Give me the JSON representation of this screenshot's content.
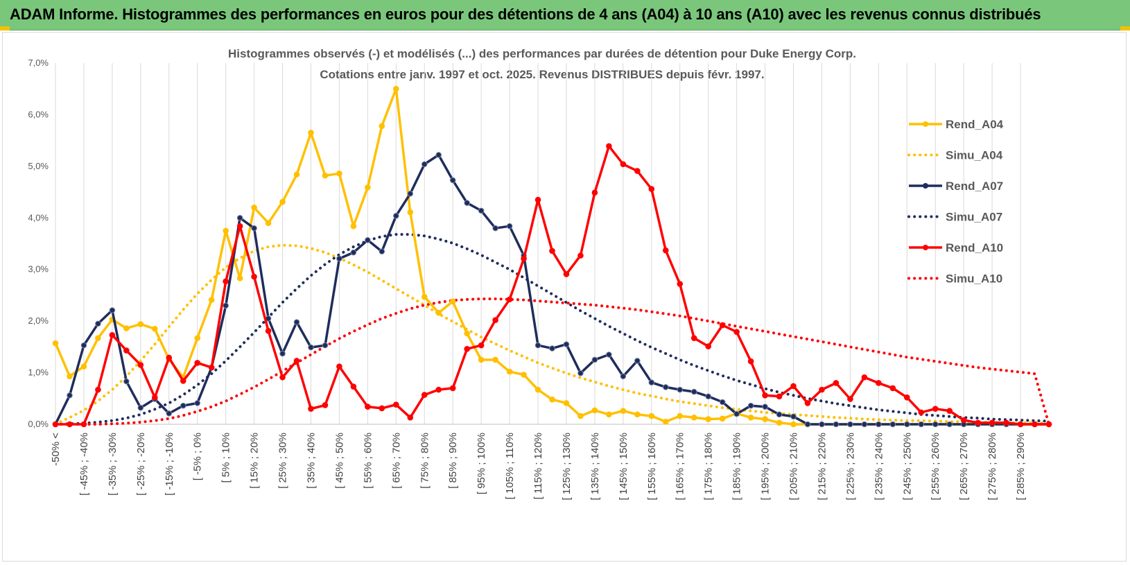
{
  "header": {
    "title": "ADAM Informe. Histogrammes des performances en euros pour des détentions de 4 ans (A04) à 10 ans (A10) avec les revenus connus distribués"
  },
  "chart_data": {
    "type": "line",
    "title": "Histogrammes observés (-) et modélisés (...) des performances par durées de détention pour Duke Energy Corp.",
    "subtitle": "Cotations entre janv. 1997 et oct. 2025.  Revenus DISTRIBUES depuis févr. 1997.",
    "xlabel": "",
    "ylabel": "",
    "ylim": [
      0,
      7
    ],
    "yticks": [
      "0,0%",
      "1,0%",
      "2,0%",
      "3,0%",
      "4,0%",
      "5,0%",
      "6,0%",
      "7,0%"
    ],
    "grid": "vertical",
    "legend_position": "right",
    "x_labels": [
      "-50% <",
      "[ -45% ; -40%",
      "[ -35% ; -30%",
      "[ -25% ; -20%",
      "[ -15% ; -10%",
      "[ -5% ; 0%",
      "[ 5% ; 10%",
      "[ 15% ; 20%",
      "[ 25% ; 30%",
      "[ 35% ; 40%",
      "[ 45% ; 50%",
      "[ 55% ; 60%",
      "[ 65% ; 70%",
      "[ 75% ; 80%",
      "[ 85% ; 90%",
      "[ 95% ; 100%",
      "[ 105% ; 110%",
      "[ 115% ; 120%",
      "[ 125% ; 130%",
      "[ 135% ; 140%",
      "[ 145% ; 150%",
      "[ 155% ; 160%",
      "[ 165% ; 170%",
      "[ 175% ; 180%",
      "[ 185% ; 190%",
      "[ 195% ; 200%",
      "[ 205% ; 210%",
      "[ 215% ; 220%",
      "[ 225% ; 230%",
      "[ 235% ; 240%",
      "[ 245% ; 250%",
      "[ 255% ; 260%",
      "[ 265% ; 270%",
      "[ 275% ; 280%",
      "[ 285% ; 290%"
    ],
    "series": [
      {
        "name": "Rend_A04",
        "style": "solid",
        "color": "#ffc000",
        "values": [
          1.57,
          0.93,
          1.12,
          1.67,
          2.03,
          1.86,
          1.94,
          1.85,
          1.26,
          0.91,
          1.67,
          2.41,
          3.75,
          2.83,
          4.2,
          3.9,
          4.31,
          4.84,
          5.65,
          4.82,
          4.86,
          3.84,
          4.59,
          5.78,
          6.5,
          4.11,
          2.47,
          2.16,
          2.38,
          1.76,
          1.25,
          1.25,
          1.02,
          0.96,
          0.67,
          0.48,
          0.41,
          0.16,
          0.27,
          0.19,
          0.26,
          0.19,
          0.16,
          0.05,
          0.16,
          0.13,
          0.1,
          0.11,
          0.21,
          0.13,
          0.1,
          0.03,
          0.0,
          0.0,
          0.0,
          0.0,
          0.0,
          0.0,
          0.0,
          0.0,
          0.0,
          0.0,
          0.0,
          0.0,
          0.0,
          0.0,
          0.0,
          0.0,
          0.0,
          0.0,
          0.0
        ]
      },
      {
        "name": "Simu_A04",
        "style": "dotted",
        "color": "#ffc000",
        "values": [
          0.01,
          0.13,
          0.27,
          0.45,
          0.67,
          0.93,
          1.23,
          1.55,
          1.89,
          2.22,
          2.53,
          2.8,
          3.04,
          3.22,
          3.36,
          3.44,
          3.47,
          3.46,
          3.41,
          3.33,
          3.22,
          3.09,
          2.95,
          2.79,
          2.63,
          2.47,
          2.31,
          2.14,
          1.99,
          1.84,
          1.69,
          1.56,
          1.43,
          1.31,
          1.19,
          1.09,
          0.99,
          0.9,
          0.82,
          0.74,
          0.67,
          0.6,
          0.55,
          0.49,
          0.44,
          0.4,
          0.36,
          0.32,
          0.29,
          0.26,
          0.23,
          0.21,
          0.19,
          0.17,
          0.15,
          0.13,
          0.12,
          0.1,
          0.09,
          0.08,
          0.07,
          0.07,
          0.06,
          0.05,
          0.05,
          0.04,
          0.04,
          0.03,
          0.03,
          0.03,
          0.02
        ]
      },
      {
        "name": "Rend_A07",
        "style": "solid",
        "color": "#1f2d5c",
        "values": [
          0.0,
          0.56,
          1.53,
          1.95,
          2.21,
          0.83,
          0.32,
          0.49,
          0.21,
          0.36,
          0.41,
          1.1,
          2.3,
          4.0,
          3.8,
          2.05,
          1.37,
          1.98,
          1.49,
          1.53,
          3.21,
          3.33,
          3.57,
          3.35,
          4.04,
          4.47,
          5.04,
          5.22,
          4.73,
          4.29,
          4.14,
          3.8,
          3.84,
          3.27,
          1.53,
          1.47,
          1.55,
          0.99,
          1.25,
          1.35,
          0.93,
          1.23,
          0.81,
          0.72,
          0.67,
          0.63,
          0.54,
          0.43,
          0.2,
          0.36,
          0.34,
          0.19,
          0.15,
          0.0,
          0.0,
          0.0,
          0.0,
          0.0,
          0.0,
          0.0,
          0.0,
          0.0,
          0.0,
          0.0,
          0.0,
          0.0,
          0.0,
          0.0,
          0.0,
          0.0,
          0.0
        ]
      },
      {
        "name": "Simu_A07",
        "style": "dotted",
        "color": "#1f2d5c",
        "values": [
          0.0,
          0.01,
          0.02,
          0.04,
          0.07,
          0.12,
          0.19,
          0.29,
          0.41,
          0.57,
          0.76,
          0.98,
          1.23,
          1.5,
          1.78,
          2.07,
          2.36,
          2.63,
          2.88,
          3.1,
          3.29,
          3.44,
          3.56,
          3.64,
          3.68,
          3.68,
          3.65,
          3.59,
          3.51,
          3.4,
          3.28,
          3.14,
          3.0,
          2.84,
          2.68,
          2.52,
          2.36,
          2.2,
          2.05,
          1.9,
          1.76,
          1.62,
          1.49,
          1.37,
          1.25,
          1.14,
          1.04,
          0.94,
          0.85,
          0.77,
          0.69,
          0.62,
          0.56,
          0.5,
          0.45,
          0.4,
          0.36,
          0.32,
          0.28,
          0.25,
          0.22,
          0.19,
          0.17,
          0.15,
          0.13,
          0.12,
          0.1,
          0.09,
          0.08,
          0.07,
          0.06
        ]
      },
      {
        "name": "Rend_A10",
        "style": "solid",
        "color": "#ff0000",
        "values": [
          0.0,
          0.0,
          0.0,
          0.67,
          1.73,
          1.43,
          1.15,
          0.52,
          1.29,
          0.84,
          1.19,
          1.1,
          2.77,
          3.84,
          2.86,
          1.81,
          0.91,
          1.23,
          0.3,
          0.37,
          1.12,
          0.73,
          0.34,
          0.31,
          0.38,
          0.13,
          0.57,
          0.67,
          0.7,
          1.46,
          1.53,
          2.02,
          2.42,
          3.21,
          4.35,
          3.36,
          2.91,
          3.27,
          4.49,
          5.39,
          5.04,
          4.91,
          4.56,
          3.37,
          2.72,
          1.67,
          1.51,
          1.92,
          1.79,
          1.22,
          0.56,
          0.54,
          0.74,
          0.41,
          0.67,
          0.8,
          0.49,
          0.91,
          0.8,
          0.7,
          0.52,
          0.23,
          0.3,
          0.26,
          0.08,
          0.03,
          0.03,
          0.03,
          0.0,
          0.0,
          0.0
        ]
      },
      {
        "name": "Simu_A10",
        "style": "dotted",
        "color": "#ff0000",
        "values": [
          0.0,
          0.0,
          0.0,
          0.0,
          0.01,
          0.02,
          0.04,
          0.07,
          0.11,
          0.17,
          0.25,
          0.34,
          0.45,
          0.58,
          0.72,
          0.87,
          1.03,
          1.19,
          1.35,
          1.51,
          1.66,
          1.8,
          1.93,
          2.05,
          2.15,
          2.24,
          2.31,
          2.36,
          2.4,
          2.42,
          2.43,
          2.43,
          2.42,
          2.41,
          2.39,
          2.37,
          2.35,
          2.33,
          2.31,
          2.28,
          2.25,
          2.22,
          2.18,
          2.14,
          2.1,
          2.05,
          2.0,
          1.95,
          1.9,
          1.85,
          1.8,
          1.75,
          1.7,
          1.65,
          1.6,
          1.55,
          1.5,
          1.45,
          1.4,
          1.35,
          1.3,
          1.26,
          1.22,
          1.18,
          1.14,
          1.1,
          1.07,
          1.04,
          1.01,
          0.98,
          0.0
        ]
      }
    ]
  }
}
